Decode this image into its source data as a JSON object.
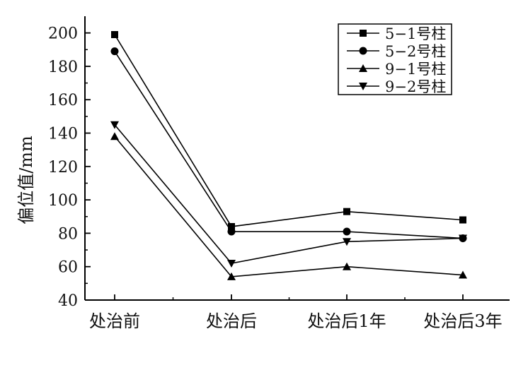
{
  "chart_data": {
    "type": "line",
    "title": "",
    "xlabel": "",
    "ylabel": "偏位值/mm",
    "categories": [
      "处治前",
      "处治后",
      "处治后1年",
      "处治后3年"
    ],
    "ylim": [
      40,
      210
    ],
    "yticks": [
      40,
      60,
      80,
      100,
      120,
      140,
      160,
      180,
      200
    ],
    "grid": false,
    "legend_position": "top-right",
    "series": [
      {
        "name": "5−1号柱",
        "marker": "square",
        "color": "#000000",
        "values": [
          199,
          84,
          93,
          88
        ]
      },
      {
        "name": "5−2号柱",
        "marker": "circle",
        "color": "#000000",
        "values": [
          189,
          81,
          81,
          77
        ]
      },
      {
        "name": "9−1号柱",
        "marker": "triangle-up",
        "color": "#000000",
        "values": [
          138,
          54,
          60,
          55
        ]
      },
      {
        "name": "9−2号柱",
        "marker": "triangle-down",
        "color": "#000000",
        "values": [
          145,
          62,
          75,
          77
        ]
      }
    ]
  }
}
